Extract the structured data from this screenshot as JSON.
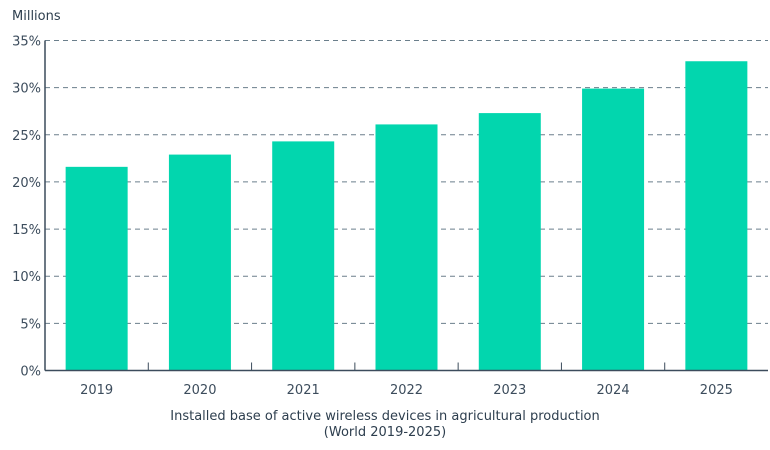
{
  "chart_data": {
    "type": "bar",
    "unit_label": "Millions",
    "categories": [
      "2019",
      "2020",
      "2021",
      "2022",
      "2023",
      "2024",
      "2025"
    ],
    "values": [
      21.6,
      22.9,
      24.3,
      26.1,
      27.3,
      29.9,
      32.8
    ],
    "y_ticks": [
      "0%",
      "5%",
      "10%",
      "15%",
      "20%",
      "25%",
      "30%",
      "35%"
    ],
    "ylim": [
      0,
      35
    ],
    "grid": true,
    "bar_color": "#02d6ae",
    "title": "Installed base of active wireless devices in agricultural production",
    "subtitle": "(World 2019-2025)"
  }
}
